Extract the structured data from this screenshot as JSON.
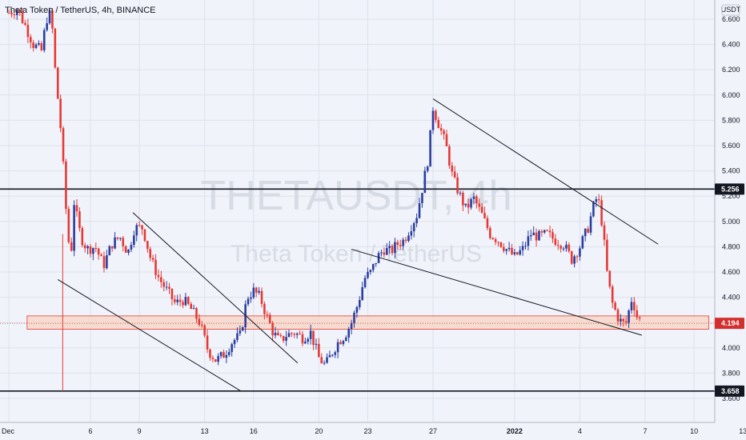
{
  "header": {
    "symbol_title": "Theta Token / TetherUS, 4h, BINANCE"
  },
  "watermark": {
    "ticker": "THETAUSDT, 4h",
    "name": "Theta Token / TetherUS"
  },
  "colors": {
    "background": "#f0f3fa",
    "up_candle": "#2a3ea0",
    "down_candle": "#e53935",
    "support_zone_fill": "#f6d6c8",
    "support_zone_border": "#e53935",
    "trendline": "#131722",
    "badge_dark": "#131722",
    "badge_price": "#d32f2f"
  },
  "chart_data": {
    "type": "candlestick",
    "title": "Theta Token / TetherUS, 4h, BINANCE",
    "y_unit": "USDT",
    "ylim": [
      3.52,
      6.72
    ],
    "y_ticks": [
      "6.600",
      "6.400",
      "6.200",
      "6.000",
      "5.800",
      "5.600",
      "5.400",
      "5.200",
      "5.000",
      "4.800",
      "4.600",
      "4.400",
      "4.200",
      "4.000",
      "3.800",
      "3.600"
    ],
    "x_ticks": [
      "Dec",
      "6",
      "9",
      "13",
      "16",
      "20",
      "23",
      "27",
      "2022",
      "4",
      "7",
      "10",
      "13"
    ],
    "x_range_days": [
      1,
      44
    ],
    "grid": true,
    "series": [
      {
        "name": "THETAUSDT 4h",
        "close_path": [
          [
            1.0,
            6.65
          ],
          [
            1.5,
            6.68
          ],
          [
            2.0,
            6.55
          ],
          [
            2.5,
            6.4
          ],
          [
            3.0,
            6.35
          ],
          [
            3.3,
            6.6
          ],
          [
            3.6,
            6.65
          ],
          [
            3.8,
            6.25
          ],
          [
            4.2,
            5.7
          ],
          [
            4.6,
            4.9
          ],
          [
            4.8,
            4.72
          ],
          [
            5.0,
            5.15
          ],
          [
            5.4,
            4.88
          ],
          [
            5.8,
            4.78
          ],
          [
            6.3,
            4.8
          ],
          [
            6.8,
            4.65
          ],
          [
            7.3,
            4.82
          ],
          [
            7.8,
            4.88
          ],
          [
            8.3,
            4.75
          ],
          [
            8.7,
            4.95
          ],
          [
            9.2,
            4.95
          ],
          [
            9.7,
            4.7
          ],
          [
            10.2,
            4.55
          ],
          [
            10.7,
            4.45
          ],
          [
            11.2,
            4.35
          ],
          [
            11.7,
            4.38
          ],
          [
            12.2,
            4.3
          ],
          [
            12.7,
            4.2
          ],
          [
            13.2,
            3.98
          ],
          [
            13.7,
            3.9
          ],
          [
            14.2,
            3.95
          ],
          [
            14.7,
            4.05
          ],
          [
            15.2,
            4.1
          ],
          [
            15.6,
            4.4
          ],
          [
            16.0,
            4.45
          ],
          [
            16.4,
            4.4
          ],
          [
            16.8,
            4.25
          ],
          [
            17.2,
            4.12
          ],
          [
            17.6,
            4.05
          ],
          [
            18.0,
            4.1
          ],
          [
            18.5,
            4.12
          ],
          [
            19.0,
            4.08
          ],
          [
            19.5,
            4.12
          ],
          [
            20.0,
            3.92
          ],
          [
            20.4,
            3.86
          ],
          [
            20.8,
            3.96
          ],
          [
            21.2,
            4.05
          ],
          [
            21.6,
            4.1
          ],
          [
            22.0,
            4.2
          ],
          [
            22.4,
            4.35
          ],
          [
            22.8,
            4.55
          ],
          [
            23.2,
            4.6
          ],
          [
            23.6,
            4.72
          ],
          [
            24.0,
            4.78
          ],
          [
            24.4,
            4.76
          ],
          [
            24.8,
            4.82
          ],
          [
            25.2,
            4.85
          ],
          [
            25.6,
            4.95
          ],
          [
            26.0,
            5.05
          ],
          [
            26.4,
            5.3
          ],
          [
            26.7,
            5.5
          ],
          [
            27.0,
            5.9
          ],
          [
            27.4,
            5.75
          ],
          [
            27.8,
            5.6
          ],
          [
            28.2,
            5.35
          ],
          [
            28.6,
            5.22
          ],
          [
            29.0,
            5.1
          ],
          [
            29.5,
            5.18
          ],
          [
            30.0,
            5.05
          ],
          [
            30.5,
            4.9
          ],
          [
            31.0,
            4.85
          ],
          [
            31.5,
            4.78
          ],
          [
            32.0,
            4.72
          ],
          [
            32.5,
            4.78
          ],
          [
            33.0,
            4.9
          ],
          [
            33.5,
            4.88
          ],
          [
            34.0,
            4.9
          ],
          [
            34.5,
            4.85
          ],
          [
            35.0,
            4.82
          ],
          [
            35.5,
            4.7
          ],
          [
            36.0,
            4.8
          ],
          [
            36.5,
            4.95
          ],
          [
            36.9,
            5.15
          ],
          [
            37.1,
            5.2
          ],
          [
            37.4,
            4.95
          ],
          [
            37.7,
            4.55
          ],
          [
            38.0,
            4.35
          ],
          [
            38.4,
            4.22
          ],
          [
            38.8,
            4.18
          ],
          [
            39.2,
            4.4
          ],
          [
            39.5,
            4.25
          ],
          [
            39.8,
            4.2
          ]
        ]
      }
    ],
    "horizontal_levels": [
      {
        "label": "5.256",
        "value": 5.256
      },
      {
        "label": "3.658",
        "value": 3.658
      }
    ],
    "current_price": {
      "label": "4.194",
      "value": 4.194
    },
    "support_zone": {
      "low": 4.16,
      "high": 4.24,
      "x_from": 3.0,
      "x_to": 44.0
    },
    "trendlines": [
      {
        "from": [
          4.0,
          4.54
        ],
        "to": [
          15.2,
          3.66
        ]
      },
      {
        "from": [
          8.6,
          5.07
        ],
        "to": [
          18.7,
          3.88
        ]
      },
      {
        "from": [
          27.0,
          5.97
        ],
        "to": [
          40.8,
          4.82
        ]
      },
      {
        "from": [
          22.0,
          4.78
        ],
        "to": [
          39.8,
          4.1
        ]
      }
    ]
  }
}
